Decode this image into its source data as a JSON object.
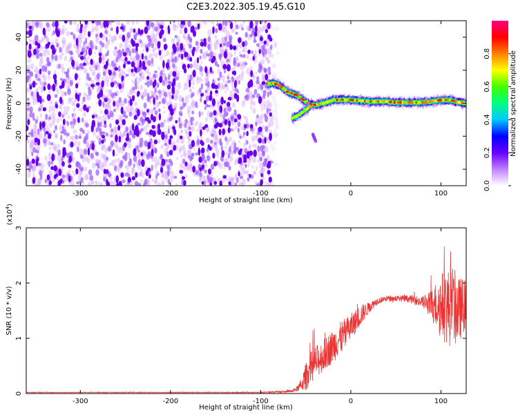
{
  "page": {
    "title": "C2E3.2022.305.19.45.G10"
  },
  "chart_data": [
    {
      "type": "heatmap",
      "xlabel": "Height of straight line (km)",
      "ylabel": "Frequency (Hz)",
      "xlim": [
        -360,
        128
      ],
      "ylim": [
        -50,
        50
      ],
      "xticks": [
        -300,
        -200,
        -100,
        0,
        100
      ],
      "yticks": [
        -40,
        -20,
        0,
        20,
        40
      ],
      "noise_region_x": [
        -360,
        -88
      ],
      "ridge": {
        "x": [
          -92,
          -85,
          -80,
          -75,
          -70,
          -65,
          -60,
          -55,
          -50,
          -45,
          -40,
          -30,
          -20,
          -10,
          0,
          10,
          20,
          30,
          40,
          50,
          60,
          70,
          80,
          90,
          100,
          110,
          120,
          128
        ],
        "freq": [
          12,
          12,
          11,
          9,
          7,
          6,
          5,
          3,
          1,
          -1,
          -1,
          0,
          2,
          2,
          2,
          1.5,
          1,
          1,
          1,
          0.5,
          0.5,
          0.5,
          0.5,
          1,
          2,
          2,
          0.5,
          0
        ]
      },
      "secondary_branch": {
        "x": [
          -65,
          -60,
          -55,
          -50,
          -45
        ],
        "freq": [
          -9,
          -8,
          -6,
          -4,
          -2
        ]
      },
      "isolated_blob": {
        "x": [
          -42,
          -39
        ],
        "freq": [
          -19,
          -23
        ]
      },
      "colorbar": {
        "label": "Normalized spectral amplitude",
        "range": [
          0,
          1
        ],
        "ticks": [
          0.0,
          0.2,
          0.4,
          0.6,
          0.8
        ],
        "tick_labels": [
          "0.0",
          "0.2",
          "0.4",
          "0.6",
          "0.8"
        ],
        "colors": [
          "#ffffff",
          "#c080ff",
          "#6a00ff",
          "#0000ff",
          "#00c8ff",
          "#00ff80",
          "#40ff00",
          "#ffff00",
          "#ff8000",
          "#ff0000",
          "#ff0080"
        ]
      }
    },
    {
      "type": "line",
      "xlabel": "Height of straight line (km)",
      "ylabel": "SNR (10 * v/v)",
      "scale_note": "(x10",
      "scale_exp": "4",
      "scale_close": ")",
      "xlim": [
        -360,
        128
      ],
      "ylim": [
        0,
        3
      ],
      "xticks": [
        -300,
        -200,
        -100,
        0,
        100
      ],
      "yticks": [
        0,
        1,
        2,
        3
      ],
      "color": "#ee3333",
      "series": [
        {
          "x": [
            -360,
            -200,
            -100,
            -65,
            -60,
            -55,
            -50,
            -45,
            -40,
            -35,
            -30,
            -25,
            -20,
            -15,
            -10,
            -5,
            0,
            5,
            10,
            15,
            20,
            25,
            30,
            40,
            50,
            60,
            70,
            80,
            85,
            90,
            95,
            100,
            105,
            110,
            115,
            120,
            125,
            128
          ],
          "y": [
            0.02,
            0.02,
            0.02,
            0.04,
            0.08,
            0.15,
            0.3,
            0.45,
            0.55,
            0.62,
            0.7,
            0.78,
            0.85,
            0.95,
            1.02,
            1.1,
            1.2,
            1.3,
            1.4,
            1.48,
            1.55,
            1.62,
            1.68,
            1.72,
            1.72,
            1.72,
            1.7,
            1.65,
            1.62,
            1.6,
            1.6,
            1.58,
            1.6,
            1.55,
            1.55,
            1.5,
            1.6,
            1.6
          ],
          "noise": [
            0.005,
            0.005,
            0.006,
            0.02,
            0.05,
            0.1,
            0.25,
            0.3,
            0.3,
            0.3,
            0.3,
            0.3,
            0.3,
            0.3,
            0.3,
            0.28,
            0.25,
            0.22,
            0.2,
            0.15,
            0.1,
            0.08,
            0.06,
            0.05,
            0.05,
            0.06,
            0.08,
            0.12,
            0.18,
            0.3,
            0.45,
            0.6,
            0.7,
            0.7,
            0.7,
            0.6,
            0.5,
            0.5
          ]
        }
      ]
    }
  ]
}
